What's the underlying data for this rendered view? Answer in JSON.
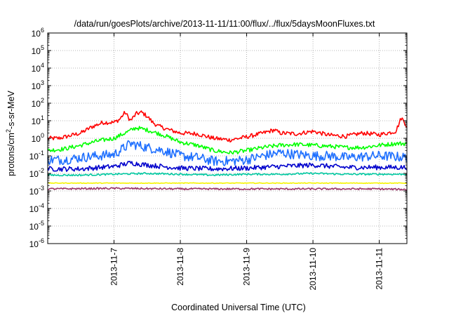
{
  "chart_data": {
    "type": "line",
    "title": "/data/run/goesPlots/archive/2013-11-11/11:00/flux/../flux/5daysMoonFluxes.txt",
    "xlabel": "Coordinated Universal Time (UTC)",
    "ylabel": "protons/cm²-s-sr-MeV",
    "ylabel_parts": {
      "prefix": "protons/cm",
      "superscript": "2",
      "suffix": "-s-sr-MeV"
    },
    "yscale": "log",
    "ylim_exponents": [
      -6,
      6
    ],
    "y_ticks": [
      {
        "base": "10",
        "exp": "-6"
      },
      {
        "base": "10",
        "exp": "-5"
      },
      {
        "base": "10",
        "exp": "-4"
      },
      {
        "base": "10",
        "exp": "-3"
      },
      {
        "base": "10",
        "exp": "-2"
      },
      {
        "base": "10",
        "exp": "-1"
      },
      {
        "base": "10",
        "exp": "0"
      },
      {
        "base": "10",
        "exp": "1"
      },
      {
        "base": "10",
        "exp": "2"
      },
      {
        "base": "10",
        "exp": "3"
      },
      {
        "base": "10",
        "exp": "4"
      },
      {
        "base": "10",
        "exp": "5"
      },
      {
        "base": "10",
        "exp": "6"
      }
    ],
    "x_range_days": [
      "2013-11-06 00:00",
      "2013-11-11 10:00"
    ],
    "x_ticks": [
      "2013-11-7",
      "2013-11-8",
      "2013-11-9",
      "2013-11-10",
      "2013-11-11"
    ],
    "grid": true,
    "legend": "none",
    "series": [
      {
        "color": "#ff0000",
        "x": [
          "2013-11-06 00:00",
          "2013-11-06 04:00",
          "2013-11-06 08:00",
          "2013-11-06 12:00",
          "2013-11-06 16:00",
          "2013-11-06 20:00",
          "2013-11-07 00:00",
          "2013-11-07 02:00",
          "2013-11-07 04:00",
          "2013-11-07 06:00",
          "2013-11-07 08:00",
          "2013-11-07 10:00",
          "2013-11-07 12:00",
          "2013-11-07 14:00",
          "2013-11-07 16:00",
          "2013-11-07 20:00",
          "2013-11-08 00:00",
          "2013-11-08 06:00",
          "2013-11-08 12:00",
          "2013-11-08 18:00",
          "2013-11-09 00:00",
          "2013-11-09 06:00",
          "2013-11-09 10:00",
          "2013-11-09 12:00",
          "2013-11-09 18:00",
          "2013-11-10 00:00",
          "2013-11-10 06:00",
          "2013-11-10 12:00",
          "2013-11-10 18:00",
          "2013-11-11 00:00",
          "2013-11-11 06:00",
          "2013-11-11 08:00",
          "2013-11-11 10:00"
        ],
        "y": [
          1.0,
          1.0,
          1.4,
          2.0,
          4.5,
          8.0,
          8.0,
          12.0,
          30.0,
          10.0,
          25.0,
          30.0,
          18.0,
          8.0,
          5.0,
          3.0,
          2.0,
          1.8,
          1.0,
          0.8,
          1.2,
          2.0,
          3.0,
          2.0,
          1.8,
          2.5,
          1.5,
          1.3,
          2.0,
          1.6,
          2.5,
          15.0,
          5.0
        ]
      },
      {
        "color": "#00ff00",
        "x": [
          "2013-11-06 00:00",
          "2013-11-06 06:00",
          "2013-11-06 12:00",
          "2013-11-06 18:00",
          "2013-11-07 00:00",
          "2013-11-07 04:00",
          "2013-11-07 08:00",
          "2013-11-07 12:00",
          "2013-11-07 18:00",
          "2013-11-08 00:00",
          "2013-11-08 06:00",
          "2013-11-08 12:00",
          "2013-11-08 18:00",
          "2013-11-09 00:00",
          "2013-11-09 06:00",
          "2013-11-09 12:00",
          "2013-11-09 18:00",
          "2013-11-10 00:00",
          "2013-11-10 06:00",
          "2013-11-10 12:00",
          "2013-11-10 18:00",
          "2013-11-11 00:00",
          "2013-11-11 06:00",
          "2013-11-11 10:00"
        ],
        "y": [
          0.2,
          0.25,
          0.4,
          0.7,
          1.0,
          2.0,
          4.0,
          3.0,
          1.5,
          0.6,
          0.4,
          0.2,
          0.15,
          0.2,
          0.3,
          0.4,
          0.45,
          0.4,
          0.35,
          0.3,
          0.3,
          0.4,
          0.5,
          0.5
        ]
      },
      {
        "color": "#1e6fff",
        "x": [
          "2013-11-06 00:00",
          "2013-11-06 06:00",
          "2013-11-06 12:00",
          "2013-11-06 18:00",
          "2013-11-07 00:00",
          "2013-11-07 06:00",
          "2013-11-07 12:00",
          "2013-11-07 18:00",
          "2013-11-08 00:00",
          "2013-11-08 06:00",
          "2013-11-08 12:00",
          "2013-11-08 18:00",
          "2013-11-09 00:00",
          "2013-11-09 06:00",
          "2013-11-09 12:00",
          "2013-11-09 18:00",
          "2013-11-10 00:00",
          "2013-11-10 06:00",
          "2013-11-10 12:00",
          "2013-11-10 18:00",
          "2013-11-11 00:00",
          "2013-11-11 06:00",
          "2013-11-11 10:00"
        ],
        "y": [
          0.06,
          0.06,
          0.08,
          0.1,
          0.12,
          0.5,
          0.3,
          0.2,
          0.1,
          0.08,
          0.05,
          0.05,
          0.06,
          0.1,
          0.15,
          0.12,
          0.1,
          0.1,
          0.08,
          0.09,
          0.1,
          0.09,
          0.08
        ]
      },
      {
        "color": "#0000cc",
        "x": [
          "2013-11-06 00:00",
          "2013-11-06 12:00",
          "2013-11-07 00:00",
          "2013-11-07 06:00",
          "2013-11-07 12:00",
          "2013-11-08 00:00",
          "2013-11-08 12:00",
          "2013-11-09 00:00",
          "2013-11-09 12:00",
          "2013-11-10 00:00",
          "2013-11-10 12:00",
          "2013-11-11 00:00",
          "2013-11-11 10:00"
        ],
        "y": [
          0.018,
          0.018,
          0.025,
          0.04,
          0.03,
          0.02,
          0.018,
          0.02,
          0.025,
          0.03,
          0.022,
          0.022,
          0.022
        ]
      },
      {
        "color": "#00c8a0",
        "x": [
          "2013-11-06 00:00",
          "2013-11-06 12:00",
          "2013-11-07 00:00",
          "2013-11-07 12:00",
          "2013-11-08 00:00",
          "2013-11-08 12:00",
          "2013-11-09 00:00",
          "2013-11-09 12:00",
          "2013-11-10 00:00",
          "2013-11-10 12:00",
          "2013-11-11 00:00",
          "2013-11-11 10:00"
        ],
        "y": [
          0.008,
          0.008,
          0.009,
          0.01,
          0.009,
          0.008,
          0.009,
          0.009,
          0.01,
          0.009,
          0.009,
          0.009
        ]
      },
      {
        "color": "#f5f500",
        "x": [
          "2013-11-06 00:00",
          "2013-11-07 00:00",
          "2013-11-08 00:00",
          "2013-11-09 00:00",
          "2013-11-10 00:00",
          "2013-11-11 00:00",
          "2013-11-11 10:00"
        ],
        "y": [
          0.0028,
          0.0028,
          0.0028,
          0.0028,
          0.0028,
          0.0028,
          0.0028
        ]
      },
      {
        "color": "#993366",
        "x": [
          "2013-11-06 00:00",
          "2013-11-07 00:00",
          "2013-11-08 00:00",
          "2013-11-09 00:00",
          "2013-11-10 00:00",
          "2013-11-11 00:00",
          "2013-11-11 10:00"
        ],
        "y": [
          0.0013,
          0.0014,
          0.0013,
          0.0013,
          0.0013,
          0.0013,
          0.0012
        ]
      }
    ]
  }
}
